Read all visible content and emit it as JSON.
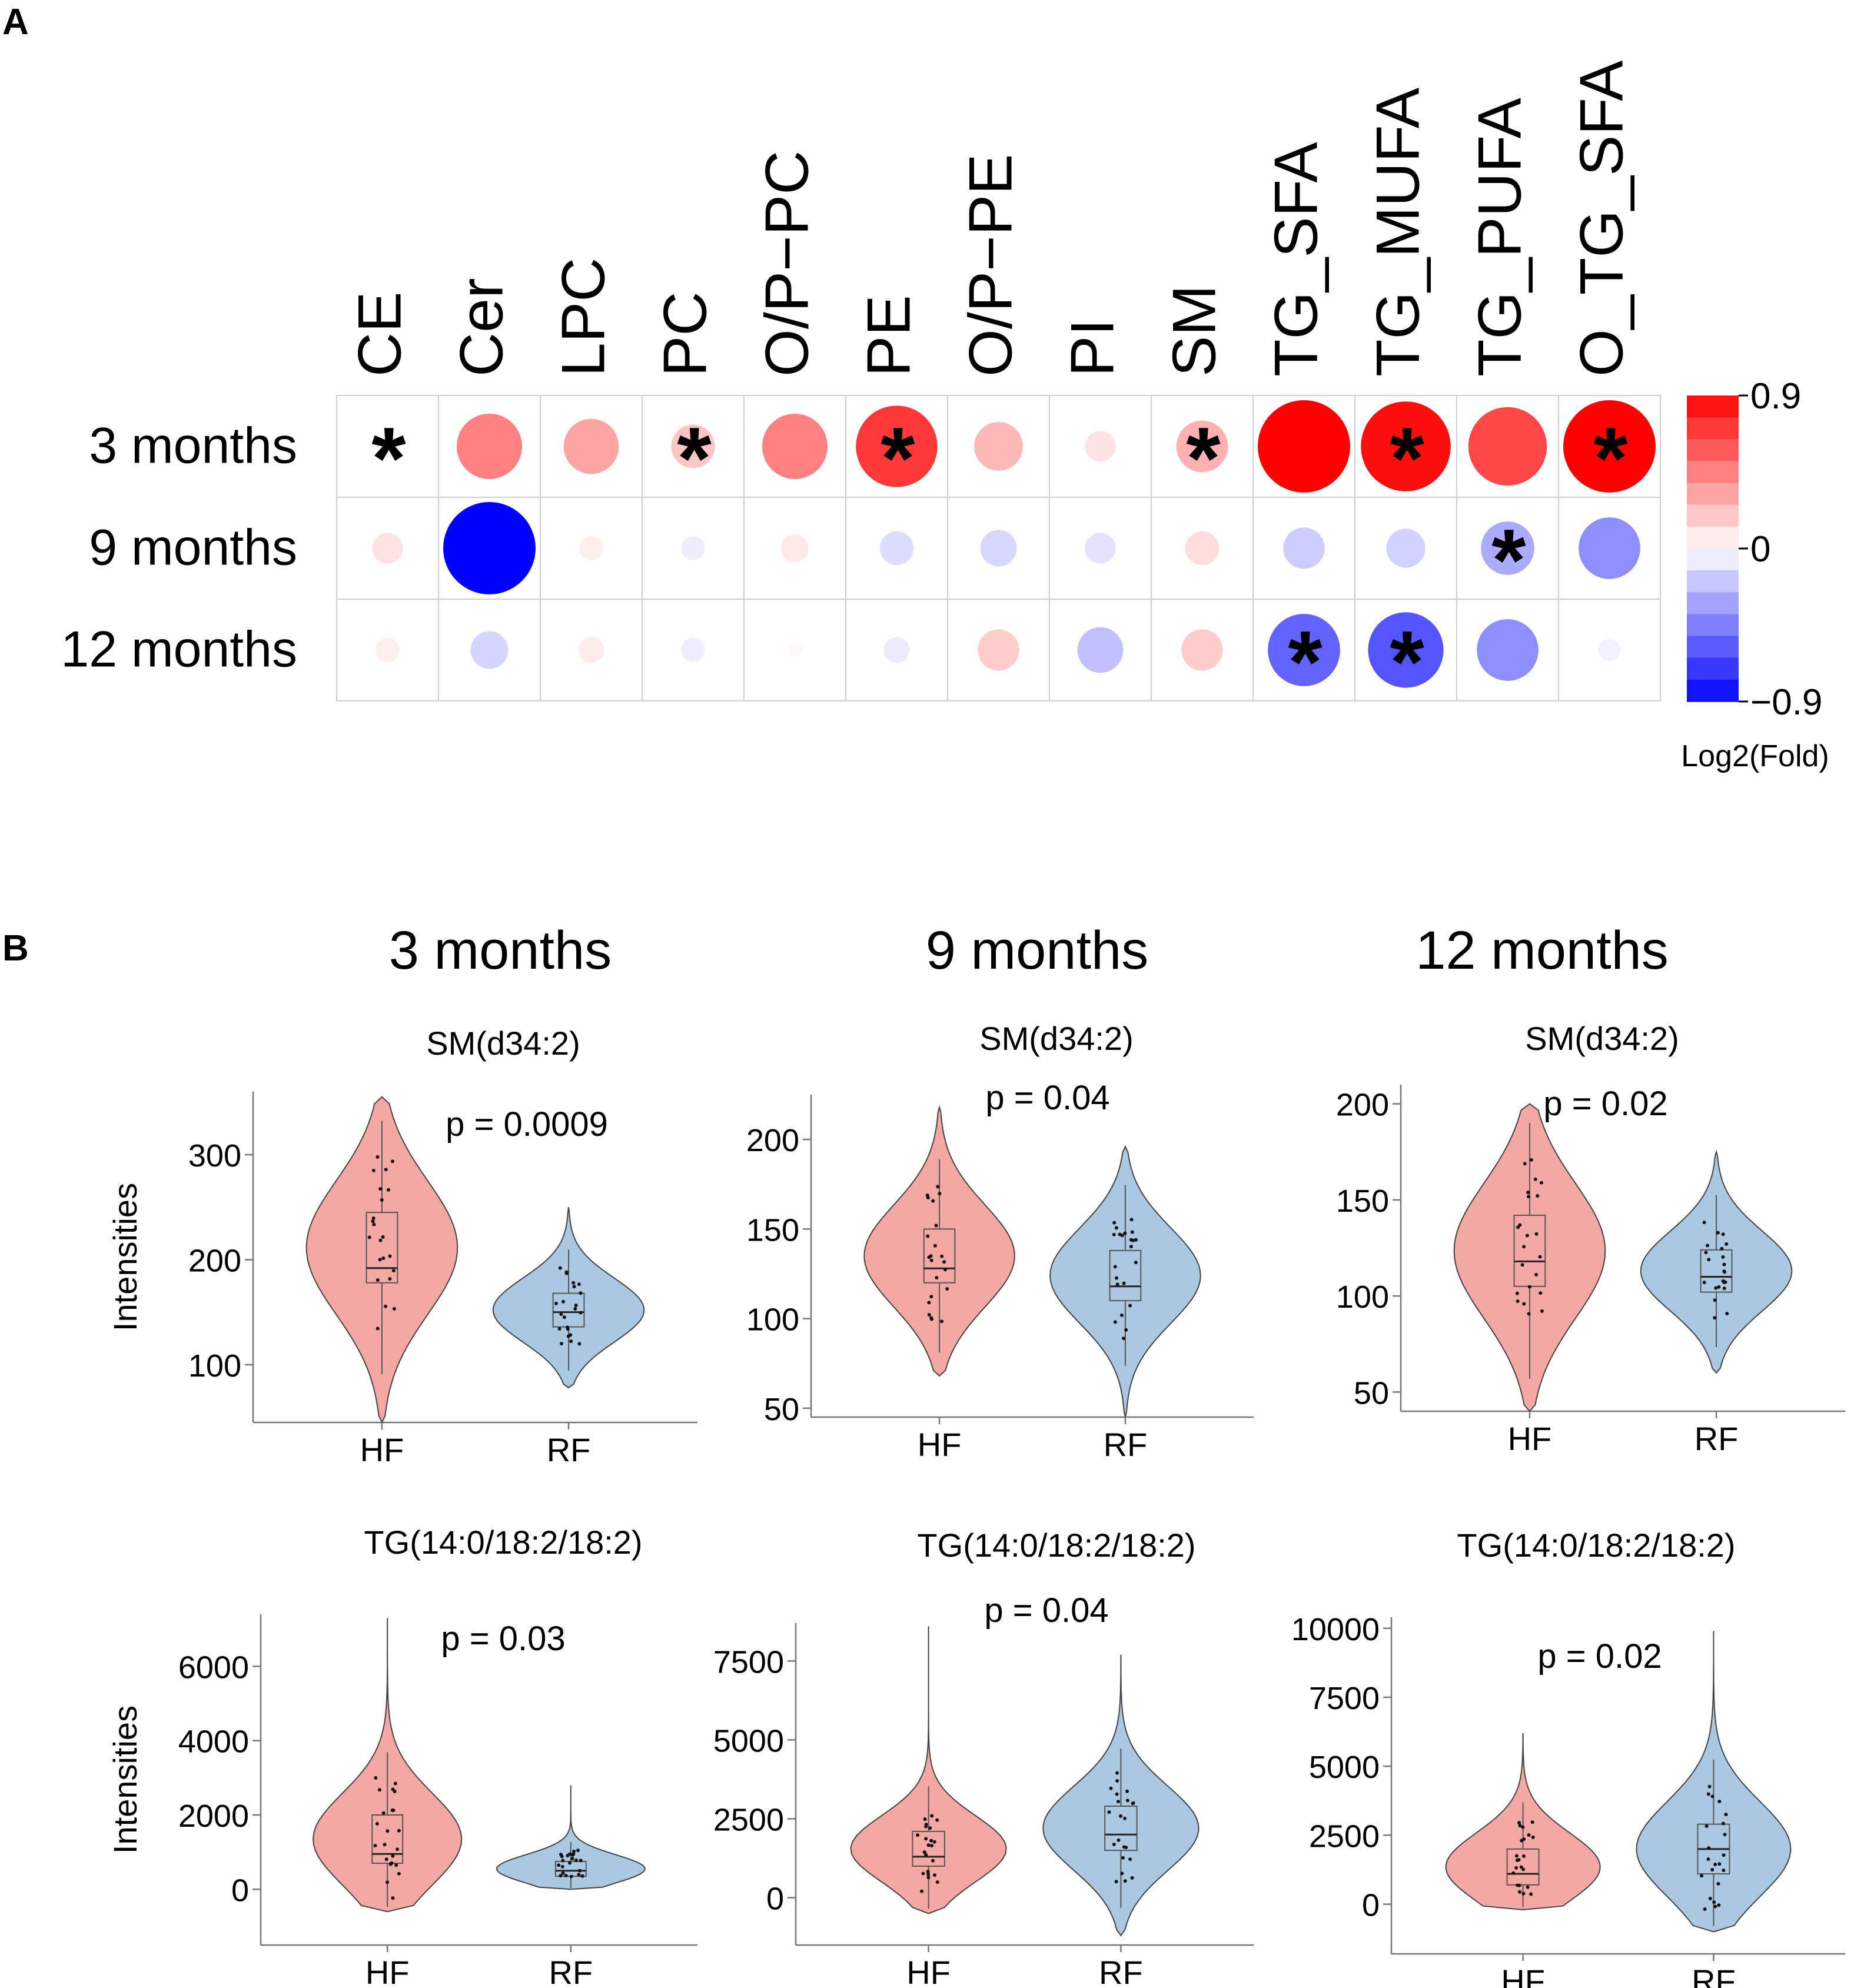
{
  "panel_labels": {
    "a": "A",
    "b": "B"
  },
  "colors": {
    "red": "#ff0000",
    "blue": "#0000ff",
    "hf_fill": "#f4a8a4",
    "rf_fill": "#aac8e2",
    "grid": "#cfcfcf",
    "box_stroke": "#555555"
  },
  "chart_data": [
    {
      "type": "heatmap",
      "columns": [
        "CE",
        "Cer",
        "LPC",
        "PC",
        "O/P−PC",
        "PE",
        "O/P−PE",
        "PI",
        "SM",
        "TG_SFA",
        "TG_MUFA",
        "TG_PUFA",
        "O_TG_SFA"
      ],
      "rows": [
        "3 months",
        "9 months",
        "12  months"
      ],
      "values": [
        [
          0.05,
          0.45,
          0.32,
          0.2,
          0.45,
          0.7,
          0.25,
          0.1,
          0.28,
          0.9,
          0.85,
          0.65,
          0.9
        ],
        [
          0.1,
          -0.9,
          0.06,
          -0.06,
          0.08,
          -0.12,
          -0.14,
          -0.1,
          0.12,
          -0.18,
          -0.16,
          -0.3,
          -0.4
        ],
        [
          0.06,
          -0.15,
          0.07,
          -0.06,
          0.02,
          -0.07,
          0.18,
          -0.22,
          0.18,
          -0.55,
          -0.6,
          -0.4,
          -0.05
        ]
      ],
      "significant": [
        [
          true,
          false,
          false,
          true,
          false,
          true,
          false,
          false,
          true,
          false,
          true,
          false,
          true
        ],
        [
          false,
          false,
          false,
          false,
          false,
          false,
          false,
          false,
          false,
          false,
          false,
          true,
          false
        ],
        [
          false,
          false,
          false,
          false,
          false,
          false,
          false,
          false,
          false,
          true,
          true,
          false,
          false
        ]
      ],
      "marker": "*",
      "color_scale": {
        "min": -0.9,
        "max": 0.9,
        "tick_labels": [
          "0.9",
          "0",
          "−0.9"
        ],
        "title": "Log2(Fold)"
      }
    },
    {
      "type": "violin",
      "group_titles": [
        "3 months",
        "9 months",
        "12 months"
      ],
      "ylabel": "Intensities",
      "categories": [
        "HF",
        "RF"
      ],
      "plots": [
        {
          "title": "SM(d34:2)",
          "pvalue": "p = 0.0009",
          "ylim": [
            45,
            360
          ],
          "yticks": [
            100,
            200,
            300
          ],
          "ytick_labels": [
            "100",
            "200",
            "300"
          ],
          "HF": {
            "min": 45,
            "max": 355,
            "q1": 178,
            "median": 192,
            "q3": 245
          },
          "RF": {
            "min": 78,
            "max": 250,
            "q1": 136,
            "median": 150,
            "q3": 168
          }
        },
        {
          "title": "SM(d34:2)",
          "pvalue": "p = 0.04",
          "ylim": [
            45,
            225
          ],
          "yticks": [
            50,
            100,
            150,
            200
          ],
          "ytick_labels": [
            "50",
            "100",
            "150",
            "200"
          ],
          "HF": {
            "min": 68,
            "max": 218,
            "q1": 120,
            "median": 128,
            "q3": 150
          },
          "RF": {
            "min": 45,
            "max": 196,
            "q1": 110,
            "median": 118,
            "q3": 138
          }
        },
        {
          "title": "SM(d34:2)",
          "pvalue": "p = 0.02",
          "ylim": [
            40,
            210
          ],
          "yticks": [
            50,
            100,
            150,
            200
          ],
          "ytick_labels": [
            "50",
            "100",
            "150",
            "200"
          ],
          "HF": {
            "min": 40,
            "max": 200,
            "q1": 105,
            "median": 118,
            "q3": 142
          },
          "RF": {
            "min": 60,
            "max": 175,
            "q1": 102,
            "median": 110,
            "q3": 124
          }
        },
        {
          "title": "TG(14:0/18:2/18:2)",
          "pvalue": "p = 0.03",
          "ylim": [
            -1500,
            7400
          ],
          "yticks": [
            0,
            2000,
            4000,
            6000
          ],
          "ytick_labels": [
            "0",
            "2000",
            "4000",
            "6000"
          ],
          "HF": {
            "min": -600,
            "max": 7300,
            "q1": 700,
            "median": 950,
            "q3": 2000
          },
          "RF": {
            "min": 0,
            "max": 2800,
            "q1": 350,
            "median": 500,
            "q3": 750
          }
        },
        {
          "title": "TG(14:0/18:2/18:2)",
          "pvalue": "p = 0.04",
          "ylim": [
            -1500,
            8700
          ],
          "yticks": [
            0,
            2500,
            5000,
            7500
          ],
          "ytick_labels": [
            "0",
            "2500",
            "5000",
            "7500"
          ],
          "HF": {
            "min": -500,
            "max": 8600,
            "q1": 1000,
            "median": 1300,
            "q3": 2100
          },
          "RF": {
            "min": -1200,
            "max": 7700,
            "q1": 1500,
            "median": 2000,
            "q3": 2900
          }
        },
        {
          "title": "TG(14:0/18:2/18:2)",
          "pvalue": "p = 0.02",
          "ylim": [
            -1800,
            10400
          ],
          "yticks": [
            0,
            2500,
            5000,
            7500,
            10000
          ],
          "ytick_labels": [
            "0",
            "2500",
            "5000",
            "7500",
            "10000"
          ],
          "HF": {
            "min": -200,
            "max": 6200,
            "q1": 700,
            "median": 1100,
            "q3": 2000
          },
          "RF": {
            "min": -1000,
            "max": 9900,
            "q1": 1100,
            "median": 2000,
            "q3": 2900
          }
        }
      ]
    }
  ]
}
